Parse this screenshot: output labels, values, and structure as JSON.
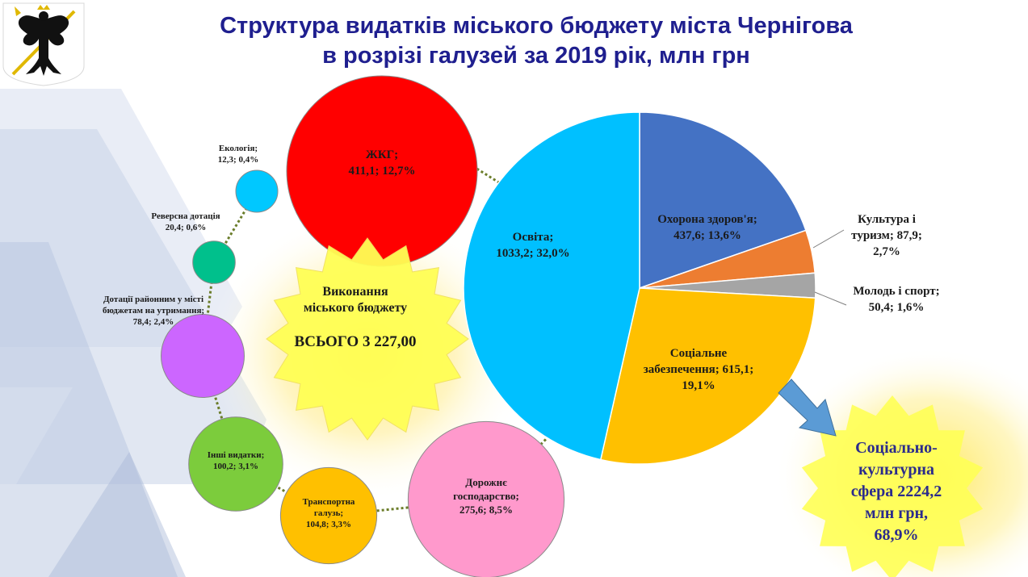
{
  "title": {
    "line1": "Структура видатків міського бюджету міста Чернігова",
    "line2": "в розрізі галузей за 2019 рік, млн грн"
  },
  "total": {
    "line1": "Виконання",
    "line2": "міського бюджету",
    "line3": "всього 3 227,00"
  },
  "callout": {
    "line1": "Соціально-",
    "line2": "культурна",
    "line3": "сфера 2224,2",
    "line4": "млн грн,",
    "line5": "68,9%"
  },
  "colors": {
    "title": "#1f1f8f",
    "callout_text": "#2b2b8c",
    "arrow": "#5b9bd5"
  },
  "chart_data": [
    {
      "type": "pie",
      "slices": [
        {
          "label": "Охорона здоров'я",
          "value": 437.6,
          "percent": 13.6,
          "color": "#4472c4",
          "label_lines": [
            "Охорона здоров'я;",
            "437,6; 13,6%"
          ]
        },
        {
          "label": "Культура і туризм",
          "value": 87.9,
          "percent": 2.7,
          "color": "#ed7d31",
          "label_lines": [
            "Культура і",
            "туризм; 87,9;",
            "2,7%"
          ]
        },
        {
          "label": "Молодь і спорт",
          "value": 50.4,
          "percent": 1.6,
          "color": "#a5a5a5",
          "label_lines": [
            "Молодь і спорт;",
            "50,4; 1,6%"
          ]
        },
        {
          "label": "Соціальне забезпечення",
          "value": 615.1,
          "percent": 19.1,
          "color": "#ffc000",
          "label_lines": [
            "Соціальне",
            "забезпечення; 615,1;",
            "19,1%"
          ]
        },
        {
          "label": "Освіта",
          "value": 1033.2,
          "percent": 32.0,
          "color": "#00c0ff",
          "label_lines": [
            "Освіта;",
            "1033,2; 32,0%"
          ]
        }
      ]
    },
    {
      "type": "bubble",
      "items": [
        {
          "label": "ЖКГ",
          "value": 411.1,
          "percent": 12.7,
          "color": "#ff0000",
          "label_lines": [
            "ЖКГ;",
            "411,1; 12,7%"
          ]
        },
        {
          "label": "Екологія",
          "value": 12.3,
          "percent": 0.4,
          "color": "#00c8ff",
          "label_lines": [
            "Екологія;",
            "12,3; 0,4%"
          ]
        },
        {
          "label": "Реверсна дотація",
          "value": 20.4,
          "percent": 0.6,
          "color": "#00c08c",
          "label_lines": [
            "Реверсна дотація",
            "20,4; 0,6%"
          ]
        },
        {
          "label": "Дотації районним у місті бюджетам на утримання",
          "value": 78.4,
          "percent": 2.4,
          "color": "#cc66ff",
          "label_lines": [
            "Дотації районним у місті",
            "бюджетам на утримання;",
            "78,4; 2,4%"
          ]
        },
        {
          "label": "Інші видатки",
          "value": 100.2,
          "percent": 3.1,
          "color": "#7ccc3c",
          "label_lines": [
            "Інші видатки;",
            "100,2; 3,1%"
          ]
        },
        {
          "label": "Транспортна галузь",
          "value": 104.8,
          "percent": 3.3,
          "color": "#ffc000",
          "label_lines": [
            "Транспортна",
            "галузь;",
            "104,8; 3,3%"
          ]
        },
        {
          "label": "Дорожнє господарство",
          "value": 275.6,
          "percent": 8.5,
          "color": "#ff99cc",
          "label_lines": [
            "Дорожнє",
            "господарство;",
            "275,6; 8,5%"
          ]
        }
      ]
    }
  ]
}
